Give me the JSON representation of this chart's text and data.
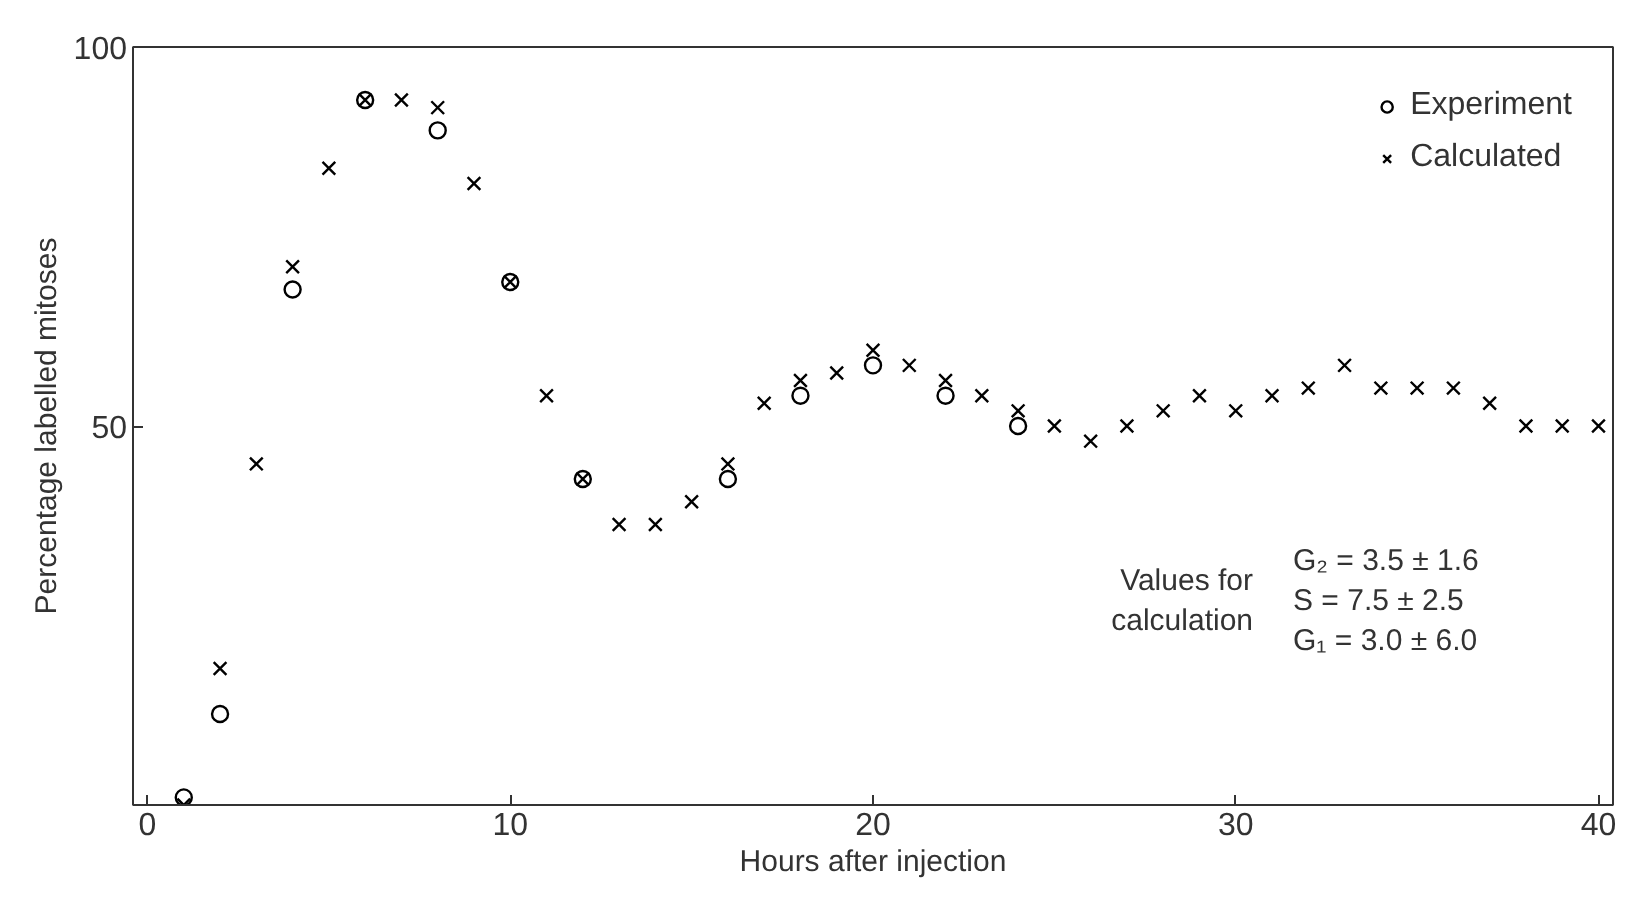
{
  "chart_data": {
    "type": "scatter",
    "xlabel": "Hours after injection",
    "ylabel": "Percentage labelled mitoses",
    "xlim": [
      -0.4,
      40.4
    ],
    "ylim": [
      0,
      100
    ],
    "xticks": [
      0,
      10,
      20,
      30,
      40
    ],
    "yticks": [
      50,
      100
    ],
    "grid": false,
    "legend": "top right",
    "series": [
      {
        "name": "Experiment",
        "color": "#000000",
        "marker": "circle",
        "x": [
          1,
          2,
          4,
          6,
          8,
          10,
          12,
          16,
          18,
          20,
          22,
          24
        ],
        "values": [
          1,
          12,
          68,
          93,
          89,
          69,
          43,
          43,
          54,
          58,
          54,
          50
        ]
      },
      {
        "name": "Calculated",
        "color": "#000000",
        "marker": "cross",
        "x": [
          1,
          2,
          3,
          4,
          5,
          6,
          7,
          8,
          9,
          10,
          11,
          12,
          13,
          14,
          15,
          16,
          17,
          18,
          19,
          20,
          21,
          22,
          23,
          24,
          25,
          26,
          27,
          28,
          29,
          30,
          31,
          32,
          33,
          34,
          35,
          36,
          37,
          38,
          39,
          40
        ],
        "values": [
          0,
          18,
          45,
          71,
          84,
          93,
          93,
          92,
          82,
          69,
          54,
          43,
          37,
          37,
          40,
          45,
          53,
          56,
          57,
          60,
          58,
          56,
          54,
          52,
          50,
          48,
          50,
          52,
          54,
          52,
          54,
          55,
          58,
          55,
          55,
          55,
          53,
          50,
          50,
          50
        ]
      }
    ],
    "annotations": [
      "Values for",
      "calculation",
      "G₂ = 3.5 ± 1.6",
      "S  = 7.5 ± 2.5",
      "G₁ = 3.0 ± 6.0"
    ]
  }
}
